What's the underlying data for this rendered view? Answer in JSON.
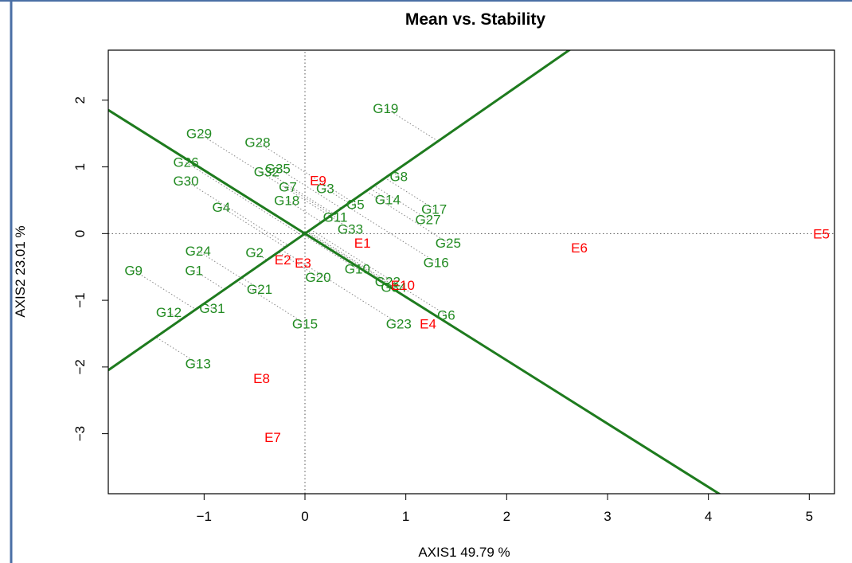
{
  "chart_data": {
    "type": "scatter",
    "title": "Mean vs. Stability",
    "xlabel": "AXIS1 49.79 %",
    "ylabel": "AXIS2 23.01 %",
    "xlim": [
      -1.95,
      5.25
    ],
    "ylim": [
      -3.9,
      2.75
    ],
    "x_ticks": [
      -1,
      0,
      1,
      2,
      3,
      4,
      5
    ],
    "y_ticks": [
      -3,
      -2,
      -1,
      0,
      1,
      2
    ],
    "x_tick_labels": [
      "−1",
      "0",
      "1",
      "2",
      "3",
      "4",
      "5"
    ],
    "y_tick_labels": [
      "−3",
      "−2",
      "−1",
      "0",
      "1",
      "2"
    ],
    "genotype_color": "#228B22",
    "environment_color": "#FF0000",
    "line_color": "#1E7B1E",
    "frame_color": "#4A6FA5",
    "mean_axis": {
      "slope": 1.05,
      "intercept": 0.0
    },
    "stability_axis": {
      "slope": -0.95,
      "intercept": 0.0
    },
    "genotypes": [
      {
        "label": "G1",
        "x": -1.1,
        "y": -0.55
      },
      {
        "label": "G2",
        "x": -0.5,
        "y": -0.28
      },
      {
        "label": "G3",
        "x": 0.2,
        "y": 0.68
      },
      {
        "label": "G4",
        "x": -0.83,
        "y": 0.4
      },
      {
        "label": "G5",
        "x": 0.5,
        "y": 0.44
      },
      {
        "label": "G6",
        "x": 1.4,
        "y": -1.22
      },
      {
        "label": "G7",
        "x": -0.17,
        "y": 0.7
      },
      {
        "label": "G8",
        "x": 0.93,
        "y": 0.86
      },
      {
        "label": "G9",
        "x": -1.7,
        "y": -0.55
      },
      {
        "label": "G10",
        "x": 0.52,
        "y": -0.53
      },
      {
        "label": "G11",
        "x": 0.3,
        "y": 0.25
      },
      {
        "label": "G12",
        "x": -1.35,
        "y": -1.18
      },
      {
        "label": "G13",
        "x": -1.06,
        "y": -1.95
      },
      {
        "label": "G14",
        "x": 0.82,
        "y": 0.51
      },
      {
        "label": "G15",
        "x": 0.0,
        "y": -1.35
      },
      {
        "label": "G16",
        "x": 1.3,
        "y": -0.43
      },
      {
        "label": "G17",
        "x": 1.28,
        "y": 0.37
      },
      {
        "label": "G18",
        "x": -0.18,
        "y": 0.5
      },
      {
        "label": "G19",
        "x": 0.8,
        "y": 1.88
      },
      {
        "label": "G20",
        "x": 0.13,
        "y": -0.65
      },
      {
        "label": "G21",
        "x": -0.45,
        "y": -0.83
      },
      {
        "label": "G22",
        "x": 0.82,
        "y": -0.72
      },
      {
        "label": "G23",
        "x": 0.93,
        "y": -1.35
      },
      {
        "label": "G24",
        "x": -1.06,
        "y": -0.26
      },
      {
        "label": "G25",
        "x": 1.42,
        "y": -0.14
      },
      {
        "label": "G26",
        "x": -1.18,
        "y": 1.07
      },
      {
        "label": "G27",
        "x": 1.22,
        "y": 0.21
      },
      {
        "label": "G28",
        "x": -0.47,
        "y": 1.37
      },
      {
        "label": "G29",
        "x": -1.05,
        "y": 1.5
      },
      {
        "label": "G30",
        "x": -1.18,
        "y": 0.79
      },
      {
        "label": "G31",
        "x": -0.92,
        "y": -1.12
      },
      {
        "label": "G32",
        "x": -0.38,
        "y": 0.93
      },
      {
        "label": "G33",
        "x": 0.45,
        "y": 0.07
      },
      {
        "label": "G34",
        "x": 0.88,
        "y": -0.8
      },
      {
        "label": "G35",
        "x": -0.27,
        "y": 0.98
      }
    ],
    "environments": [
      {
        "label": "E1",
        "x": 0.57,
        "y": -0.14
      },
      {
        "label": "E2",
        "x": -0.22,
        "y": -0.39
      },
      {
        "label": "E3",
        "x": -0.02,
        "y": -0.44
      },
      {
        "label": "E4",
        "x": 1.22,
        "y": -1.35
      },
      {
        "label": "E5",
        "x": 5.12,
        "y": 0.0
      },
      {
        "label": "E6",
        "x": 2.72,
        "y": -0.21
      },
      {
        "label": "E7",
        "x": -0.32,
        "y": -3.05
      },
      {
        "label": "E8",
        "x": -0.43,
        "y": -2.17
      },
      {
        "label": "E9",
        "x": 0.13,
        "y": 0.8
      },
      {
        "label": "E10",
        "x": 0.97,
        "y": -0.77
      }
    ]
  }
}
